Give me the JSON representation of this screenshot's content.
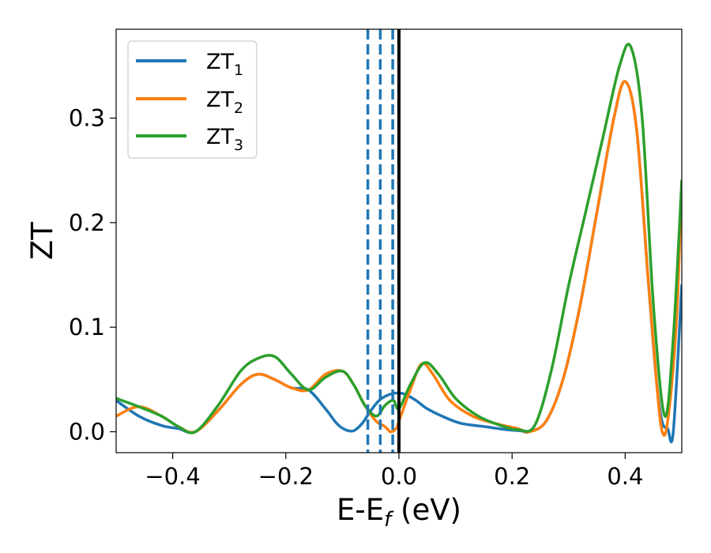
{
  "chart_data": {
    "type": "line",
    "xlabel": {
      "main": "E-E",
      "sub": "f",
      "suffix": " (eV)"
    },
    "ylabel": "ZT",
    "xlim": [
      -0.5,
      0.5
    ],
    "ylim": [
      -0.02,
      0.385
    ],
    "xticks": [
      -0.4,
      -0.2,
      0.0,
      0.2,
      0.4
    ],
    "xtick_labels": [
      "−0.4",
      "−0.2",
      "0.0",
      "0.2",
      "0.4"
    ],
    "yticks": [
      0.0,
      0.1,
      0.2,
      0.3
    ],
    "ytick_labels": [
      "0.0",
      "0.1",
      "0.2",
      "0.3"
    ],
    "grid": false,
    "legend_position": "top-left",
    "series": [
      {
        "name": "ZT",
        "sub": "1",
        "color": "#1f77b4",
        "x": [
          -0.5,
          -0.46,
          -0.42,
          -0.39,
          -0.36,
          -0.32,
          -0.28,
          -0.25,
          -0.22,
          -0.19,
          -0.16,
          -0.13,
          -0.11,
          -0.095,
          -0.08,
          -0.065,
          -0.05,
          -0.035,
          -0.02,
          -0.005,
          0.01,
          0.03,
          0.05,
          0.08,
          0.11,
          0.15,
          0.19,
          0.215,
          0.23,
          0.26,
          0.29,
          0.32,
          0.35,
          0.38,
          0.4,
          0.42,
          0.44,
          0.455,
          0.465,
          0.475,
          0.485,
          0.5
        ],
        "y": [
          0.03,
          0.015,
          0.006,
          0.003,
          0.0,
          0.02,
          0.045,
          0.055,
          0.05,
          0.042,
          0.04,
          0.022,
          0.008,
          0.002,
          0.001,
          0.008,
          0.02,
          0.03,
          0.035,
          0.037,
          0.036,
          0.03,
          0.022,
          0.014,
          0.008,
          0.005,
          0.002,
          0.001,
          0.0,
          0.01,
          0.05,
          0.12,
          0.21,
          0.3,
          0.335,
          0.29,
          0.15,
          0.05,
          0.01,
          0.003,
          0.0,
          0.14
        ]
      },
      {
        "name": "ZT",
        "sub": "2",
        "color": "#ff7f0e",
        "x": [
          -0.5,
          -0.46,
          -0.42,
          -0.39,
          -0.36,
          -0.32,
          -0.28,
          -0.25,
          -0.22,
          -0.19,
          -0.16,
          -0.13,
          -0.1,
          -0.08,
          -0.06,
          -0.04,
          -0.025,
          -0.015,
          -0.005,
          0.0,
          0.02,
          0.04,
          0.06,
          0.09,
          0.13,
          0.17,
          0.21,
          0.23,
          0.26,
          0.29,
          0.32,
          0.35,
          0.38,
          0.4,
          0.42,
          0.44,
          0.455,
          0.465,
          0.475,
          0.49,
          0.5
        ],
        "y": [
          0.015,
          0.024,
          0.015,
          0.005,
          0.0,
          0.02,
          0.045,
          0.055,
          0.05,
          0.042,
          0.04,
          0.055,
          0.058,
          0.045,
          0.025,
          0.01,
          0.005,
          0.0,
          0.003,
          0.01,
          0.04,
          0.065,
          0.055,
          0.03,
          0.015,
          0.008,
          0.003,
          0.0,
          0.01,
          0.05,
          0.12,
          0.21,
          0.3,
          0.335,
          0.29,
          0.15,
          0.05,
          0.001,
          0.01,
          0.1,
          0.24
        ]
      },
      {
        "name": "ZT",
        "sub": "3",
        "color": "#2ca02c",
        "x": [
          -0.5,
          -0.46,
          -0.42,
          -0.39,
          -0.36,
          -0.32,
          -0.28,
          -0.25,
          -0.22,
          -0.19,
          -0.16,
          -0.13,
          -0.1,
          -0.08,
          -0.06,
          -0.04,
          -0.025,
          -0.01,
          0.0,
          0.02,
          0.045,
          0.07,
          0.1,
          0.14,
          0.18,
          0.21,
          0.24,
          0.27,
          0.3,
          0.33,
          0.36,
          0.39,
          0.41,
          0.43,
          0.45,
          0.47,
          0.485,
          0.5
        ],
        "y": [
          0.032,
          0.024,
          0.015,
          0.005,
          0.0,
          0.025,
          0.058,
          0.07,
          0.072,
          0.055,
          0.04,
          0.052,
          0.058,
          0.045,
          0.025,
          0.015,
          0.025,
          0.03,
          0.022,
          0.045,
          0.066,
          0.055,
          0.032,
          0.015,
          0.006,
          0.002,
          0.006,
          0.06,
          0.14,
          0.21,
          0.28,
          0.35,
          0.368,
          0.3,
          0.12,
          0.015,
          0.09,
          0.24
        ]
      }
    ],
    "vlines": [
      {
        "x": -0.055,
        "style": "dashed",
        "color": "#1f77b4"
      },
      {
        "x": -0.033,
        "style": "dashed",
        "color": "#1f77b4"
      },
      {
        "x": -0.011,
        "style": "dashed",
        "color": "#1f77b4"
      },
      {
        "x": 0.0,
        "style": "solid",
        "color": "#000000"
      }
    ]
  }
}
